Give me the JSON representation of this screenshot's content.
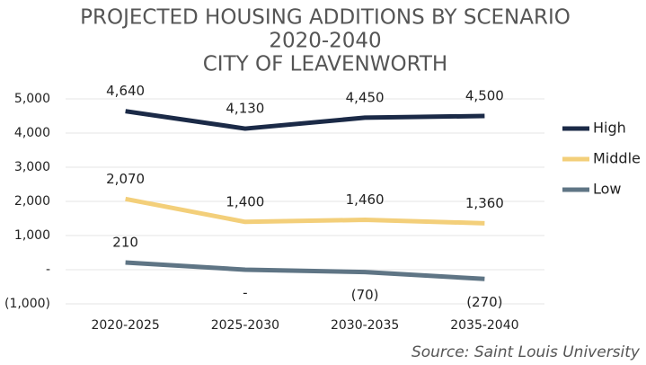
{
  "chart_data": {
    "type": "line",
    "title": [
      "PROJECTED HOUSING ADDITIONS BY SCENARIO",
      "2020-2040",
      "CITY OF LEAVENWORTH"
    ],
    "categories": [
      "2020-2025",
      "2025-2030",
      "2030-2035",
      "2035-2040"
    ],
    "series": [
      {
        "name": "High",
        "color": "#1b2a47",
        "values": [
          4640,
          4130,
          4450,
          4500
        ],
        "value_labels": [
          "4,640",
          "4,130",
          "4,450",
          "4,500"
        ]
      },
      {
        "name": "Middle",
        "color": "#f3cf7a",
        "values": [
          2070,
          1400,
          1460,
          1360
        ],
        "value_labels": [
          "2,070",
          "1,400",
          "1,460",
          "1,360"
        ]
      },
      {
        "name": "Low",
        "color": "#5f7585",
        "values": [
          210,
          0,
          -70,
          -270
        ],
        "value_labels": [
          "210",
          "-",
          "(70)",
          "(270)"
        ]
      }
    ],
    "ylim": [
      -1000,
      5000
    ],
    "yticks": [
      {
        "value": -1000,
        "label": "(1,000)"
      },
      {
        "value": 0,
        "label": "-"
      },
      {
        "value": 1000,
        "label": "1,000"
      },
      {
        "value": 2000,
        "label": "2,000"
      },
      {
        "value": 3000,
        "label": "3,000"
      },
      {
        "value": 4000,
        "label": "4,000"
      },
      {
        "value": 5000,
        "label": "5,000"
      }
    ],
    "grid": true,
    "legend": "right",
    "source": "Source: Saint Louis University"
  }
}
